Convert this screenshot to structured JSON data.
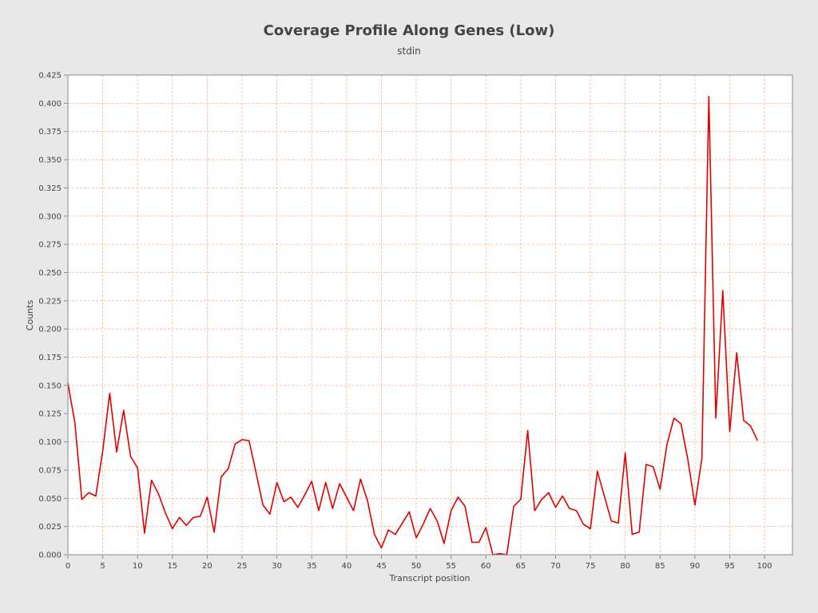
{
  "chart_data": {
    "type": "line",
    "title": "Coverage Profile Along Genes (Low)",
    "subtitle": "stdin",
    "xlabel": "Transcript position",
    "ylabel": "Counts",
    "xlim": [
      0,
      104
    ],
    "ylim": [
      0,
      0.425
    ],
    "x_ticks": [
      "0",
      "5",
      "10",
      "15",
      "20",
      "25",
      "30",
      "35",
      "40",
      "45",
      "50",
      "55",
      "60",
      "65",
      "70",
      "75",
      "80",
      "85",
      "90",
      "95",
      "100"
    ],
    "y_ticks": [
      "0.000",
      "0.025",
      "0.050",
      "0.075",
      "0.100",
      "0.125",
      "0.150",
      "0.175",
      "0.200",
      "0.225",
      "0.250",
      "0.275",
      "0.300",
      "0.325",
      "0.350",
      "0.375",
      "0.400",
      "0.425"
    ],
    "grid": true,
    "series": [
      {
        "color": "#e00000",
        "x": [
          0,
          1,
          2,
          3,
          4,
          5,
          6,
          7,
          8,
          9,
          10,
          11,
          12,
          13,
          14,
          15,
          16,
          17,
          18,
          19,
          20,
          21,
          22,
          23,
          24,
          25,
          26,
          27,
          28,
          29,
          30,
          31,
          32,
          33,
          34,
          35,
          36,
          37,
          38,
          39,
          40,
          41,
          42,
          43,
          44,
          45,
          46,
          47,
          48,
          49,
          50,
          51,
          52,
          53,
          54,
          55,
          56,
          57,
          58,
          59,
          60,
          61,
          62,
          63,
          64,
          65,
          66,
          67,
          68,
          69,
          70,
          71,
          72,
          73,
          74,
          75,
          76,
          77,
          78,
          79,
          80,
          81,
          82,
          83,
          84,
          85,
          86,
          87,
          88,
          89,
          90,
          91,
          92,
          93,
          94,
          95,
          96,
          97,
          98,
          99
        ],
        "y": [
          0.152,
          0.117,
          0.049,
          0.055,
          0.052,
          0.092,
          0.143,
          0.091,
          0.128,
          0.087,
          0.077,
          0.019,
          0.066,
          0.054,
          0.037,
          0.023,
          0.033,
          0.026,
          0.033,
          0.034,
          0.051,
          0.02,
          0.069,
          0.076,
          0.098,
          0.102,
          0.101,
          0.073,
          0.044,
          0.036,
          0.064,
          0.047,
          0.051,
          0.042,
          0.053,
          0.065,
          0.039,
          0.064,
          0.041,
          0.063,
          0.051,
          0.039,
          0.067,
          0.048,
          0.018,
          0.006,
          0.022,
          0.018,
          0.028,
          0.038,
          0.015,
          0.027,
          0.041,
          0.03,
          0.01,
          0.039,
          0.051,
          0.043,
          0.011,
          0.011,
          0.024,
          0.0,
          0.001,
          0.0,
          0.043,
          0.049,
          0.11,
          0.039,
          0.049,
          0.055,
          0.042,
          0.052,
          0.041,
          0.039,
          0.027,
          0.023,
          0.074,
          0.052,
          0.03,
          0.028,
          0.09,
          0.018,
          0.02,
          0.08,
          0.078,
          0.058,
          0.098,
          0.121,
          0.116,
          0.084,
          0.044,
          0.085,
          0.406,
          0.121,
          0.234,
          0.109,
          0.179,
          0.119,
          0.114,
          0.101
        ]
      }
    ]
  }
}
